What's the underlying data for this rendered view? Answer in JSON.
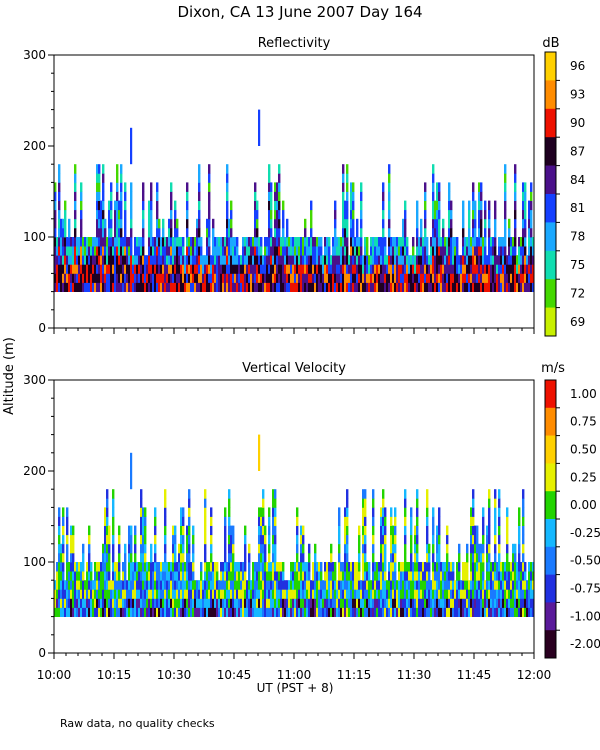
{
  "title": "Dixon, CA 13 June 2007  Day 164",
  "y_axis_label": "Altitude (m)",
  "x_axis_label": "UT  (PST + 8)",
  "footnote": "Raw data, no quality checks",
  "chart_data": [
    {
      "type": "heatmap",
      "title": "Reflectivity",
      "colorbar_unit": "dB",
      "colorbar_ticks": [
        "96",
        "93",
        "90",
        "87",
        "84",
        "81",
        "78",
        "75",
        "72",
        "69"
      ],
      "colorbar_colors": [
        "#ffd000",
        "#ff8c00",
        "#ee1100",
        "#1e0020",
        "#4a108a",
        "#1540ff",
        "#1aa8ff",
        "#10ddb0",
        "#44d800",
        "#c8f000"
      ],
      "x_ticks": [
        "10:00",
        "10:15",
        "10:30",
        "10:45",
        "11:00",
        "11:15",
        "11:30",
        "11:45",
        "12:00"
      ],
      "x_range_minutes": [
        0,
        120
      ],
      "y_ticks": [
        0,
        100,
        200,
        300
      ],
      "ylim": [
        0,
        300
      ],
      "data_altitude_range_m": [
        40,
        180
      ],
      "max_echo_altitude_m": 240
    },
    {
      "type": "heatmap",
      "title": "Vertical Velocity",
      "colorbar_unit": "m/s",
      "colorbar_ticks": [
        "1.00",
        "0.75",
        "0.50",
        "0.25",
        "0.00",
        "-0.25",
        "-0.50",
        "-0.75",
        "-1.00",
        "-2.00"
      ],
      "colorbar_colors": [
        "#ee1100",
        "#ff8c00",
        "#ffd000",
        "#e6f000",
        "#22d400",
        "#15b8ff",
        "#1a7aff",
        "#2030e0",
        "#5a1a9a",
        "#2a0020"
      ],
      "x_ticks": [
        "10:00",
        "10:15",
        "10:30",
        "10:45",
        "11:00",
        "11:15",
        "11:30",
        "11:45",
        "12:00"
      ],
      "x_range_minutes": [
        0,
        120
      ],
      "y_ticks": [
        0,
        100,
        200,
        300
      ],
      "ylim": [
        0,
        300
      ],
      "data_altitude_range_m": [
        40,
        180
      ],
      "max_echo_altitude_m": 240
    }
  ]
}
